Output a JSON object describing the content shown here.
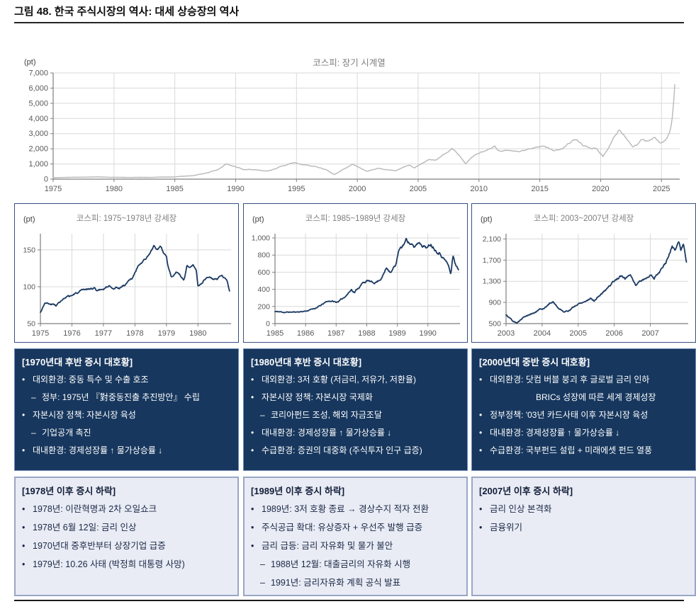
{
  "page": {
    "figure_title": "그림 48. 한국 주식시장의 역사: 대세 상승장의 역사"
  },
  "colors": {
    "longterm_line": "#b8b8b8",
    "bull_line": "#1b3a63",
    "dark_box_bg": "#17375e",
    "light_box_bg": "#e9ecf5",
    "light_box_border": "#9aa6c6",
    "grid": "#d9d9d9",
    "axis": "#7f7f7f"
  },
  "chart_data": [
    {
      "type": "line",
      "title": "코스피: 장기 시계열",
      "unit": "(pt)",
      "color": "#b8b8b8",
      "x_range": [
        1975,
        2026.5
      ],
      "x_end": 2026.1,
      "y_range": [
        0,
        7000
      ],
      "x_ticks": [
        1975,
        1980,
        1985,
        1990,
        1995,
        2000,
        2005,
        2010,
        2015,
        2020,
        2025
      ],
      "x_tick_labels": [
        "1975",
        "1980",
        "1985",
        "1990",
        "1995",
        "2000",
        "2005",
        "2010",
        "2015",
        "2020",
        "2025"
      ],
      "y_ticks": [
        0,
        1000,
        2000,
        3000,
        4000,
        5000,
        6000,
        7000
      ],
      "y_tick_labels": [
        "0",
        "1,000",
        "2,000",
        "3,000",
        "4,000",
        "5,000",
        "6,000",
        "7,000"
      ],
      "anchors": [
        [
          1975,
          95
        ],
        [
          1978.6,
          150
        ],
        [
          1979.5,
          120
        ],
        [
          1981,
          105
        ],
        [
          1983,
          125
        ],
        [
          1985,
          140
        ],
        [
          1986.5,
          230
        ],
        [
          1987.8,
          450
        ],
        [
          1988.6,
          650
        ],
        [
          1989.25,
          1000
        ],
        [
          1990.7,
          610
        ],
        [
          1991.5,
          620
        ],
        [
          1992.6,
          510
        ],
        [
          1994.8,
          1090
        ],
        [
          1996.2,
          880
        ],
        [
          1997.5,
          600
        ],
        [
          1998.1,
          300
        ],
        [
          1999.6,
          980
        ],
        [
          2000.8,
          520
        ],
        [
          2001.7,
          700
        ],
        [
          2003.2,
          540
        ],
        [
          2004.3,
          900
        ],
        [
          2004.7,
          750
        ],
        [
          2005.9,
          1300
        ],
        [
          2006.5,
          1300
        ],
        [
          2007.8,
          2050
        ],
        [
          2008.3,
          1600
        ],
        [
          2008.9,
          1000
        ],
        [
          2009.8,
          1650
        ],
        [
          2011.3,
          2180
        ],
        [
          2011.8,
          1800
        ],
        [
          2013.4,
          1900
        ],
        [
          2014.5,
          2050
        ],
        [
          2015.4,
          2150
        ],
        [
          2016.1,
          1900
        ],
        [
          2017,
          2100
        ],
        [
          2018,
          2550
        ],
        [
          2018.9,
          2050
        ],
        [
          2019.6,
          2100
        ],
        [
          2020.2,
          1480
        ],
        [
          2021.5,
          3290
        ],
        [
          2022,
          2900
        ],
        [
          2022.7,
          2180
        ],
        [
          2023.5,
          2600
        ],
        [
          2023.9,
          2450
        ],
        [
          2024.5,
          2750
        ],
        [
          2024.9,
          2400
        ],
        [
          2025.4,
          2650
        ],
        [
          2025.7,
          3200
        ],
        [
          2025.9,
          4200
        ],
        [
          2026.1,
          6300
        ]
      ]
    },
    {
      "type": "line",
      "title": "코스피: 1975~1978년 강세장",
      "unit": "(pt)",
      "color": "#1b3a63",
      "x_range": [
        1975,
        1981.05
      ],
      "x_end": 1981.0,
      "y_range": [
        50,
        172
      ],
      "x_ticks": [
        1975,
        1976,
        1977,
        1978,
        1979,
        1980
      ],
      "x_tick_labels": [
        "1975",
        "1976",
        "1977",
        "1978",
        "1979",
        "1980"
      ],
      "y_ticks": [
        50,
        100,
        150
      ],
      "y_tick_labels": [
        "50",
        "100",
        "150"
      ],
      "anchors": [
        [
          1975,
          65
        ],
        [
          1975.15,
          80
        ],
        [
          1975.3,
          76
        ],
        [
          1975.5,
          75
        ],
        [
          1975.7,
          82
        ],
        [
          1975.9,
          85
        ],
        [
          1976.1,
          90
        ],
        [
          1976.35,
          93
        ],
        [
          1976.5,
          96
        ],
        [
          1976.7,
          99
        ],
        [
          1976.8,
          95
        ],
        [
          1977,
          97
        ],
        [
          1977.15,
          102
        ],
        [
          1977.3,
          100
        ],
        [
          1977.5,
          99
        ],
        [
          1977.7,
          104
        ],
        [
          1977.9,
          110
        ],
        [
          1978.1,
          127
        ],
        [
          1978.3,
          135
        ],
        [
          1978.45,
          143
        ],
        [
          1978.6,
          154
        ],
        [
          1978.7,
          150
        ],
        [
          1978.8,
          153
        ],
        [
          1978.9,
          145
        ],
        [
          1979,
          140
        ],
        [
          1979.05,
          128
        ],
        [
          1979.15,
          115
        ],
        [
          1979.3,
          120
        ],
        [
          1979.45,
          113
        ],
        [
          1979.55,
          108
        ],
        [
          1979.65,
          128
        ],
        [
          1979.75,
          126
        ],
        [
          1979.85,
          130
        ],
        [
          1979.95,
          122
        ],
        [
          1980,
          103
        ],
        [
          1980.1,
          105
        ],
        [
          1980.2,
          112
        ],
        [
          1980.35,
          117
        ],
        [
          1980.5,
          112
        ],
        [
          1980.6,
          110
        ],
        [
          1980.75,
          115
        ],
        [
          1980.85,
          112
        ],
        [
          1980.93,
          108
        ],
        [
          1981,
          94
        ]
      ]
    },
    {
      "type": "line",
      "title": "코스피: 1985~1989년 강세장",
      "unit": "(pt)",
      "color": "#1b3a63",
      "x_range": [
        1985,
        1991.05
      ],
      "x_end": 1991.0,
      "y_range": [
        0,
        1050
      ],
      "x_ticks": [
        1985,
        1986,
        1987,
        1988,
        1989,
        1990
      ],
      "x_tick_labels": [
        "1985",
        "1986",
        "1987",
        "1988",
        "1989",
        "1990"
      ],
      "y_ticks": [
        0,
        200,
        400,
        600,
        800,
        1000
      ],
      "y_tick_labels": [
        "0",
        "200",
        "400",
        "600",
        "800",
        "1,000"
      ],
      "anchors": [
        [
          1985,
          140
        ],
        [
          1985.3,
          133
        ],
        [
          1985.6,
          134
        ],
        [
          1985.9,
          142
        ],
        [
          1986.1,
          155
        ],
        [
          1986.3,
          180
        ],
        [
          1986.5,
          210
        ],
        [
          1986.7,
          255
        ],
        [
          1986.85,
          265
        ],
        [
          1987,
          248
        ],
        [
          1987.2,
          285
        ],
        [
          1987.4,
          360
        ],
        [
          1987.5,
          400
        ],
        [
          1987.6,
          372
        ],
        [
          1987.75,
          430
        ],
        [
          1987.9,
          485
        ],
        [
          1988.05,
          500
        ],
        [
          1988.2,
          468
        ],
        [
          1988.35,
          495
        ],
        [
          1988.5,
          545
        ],
        [
          1988.65,
          655
        ],
        [
          1988.8,
          612
        ],
        [
          1988.95,
          690
        ],
        [
          1989.05,
          850
        ],
        [
          1989.15,
          880
        ],
        [
          1989.3,
          985
        ],
        [
          1989.45,
          930
        ],
        [
          1989.55,
          880
        ],
        [
          1989.7,
          955
        ],
        [
          1989.85,
          925
        ],
        [
          1990,
          895
        ],
        [
          1990.1,
          935
        ],
        [
          1990.25,
          880
        ],
        [
          1990.4,
          845
        ],
        [
          1990.55,
          760
        ],
        [
          1990.65,
          700
        ],
        [
          1990.75,
          585
        ],
        [
          1990.82,
          790
        ],
        [
          1990.9,
          705
        ],
        [
          1991,
          625
        ]
      ]
    },
    {
      "type": "line",
      "title": "코스피: 2003~2007년 강세장",
      "unit": "(pt)",
      "color": "#1b3a63",
      "x_range": [
        2003,
        2008.05
      ],
      "x_end": 2008.0,
      "y_range": [
        500,
        2200
      ],
      "x_ticks": [
        2003,
        2004,
        2005,
        2006,
        2007
      ],
      "x_tick_labels": [
        "2003",
        "2004",
        "2005",
        "2006",
        "2007"
      ],
      "y_ticks": [
        500,
        900,
        1300,
        1700,
        2100
      ],
      "y_tick_labels": [
        "500",
        "900",
        "1,300",
        "1,700",
        "2,100"
      ],
      "anchors": [
        [
          2003,
          660
        ],
        [
          2003.1,
          605
        ],
        [
          2003.2,
          535
        ],
        [
          2003.3,
          520
        ],
        [
          2003.45,
          600
        ],
        [
          2003.6,
          650
        ],
        [
          2003.75,
          700
        ],
        [
          2003.9,
          750
        ],
        [
          2004,
          770
        ],
        [
          2004.15,
          850
        ],
        [
          2004.3,
          920
        ],
        [
          2004.45,
          800
        ],
        [
          2004.55,
          750
        ],
        [
          2004.65,
          725
        ],
        [
          2004.8,
          780
        ],
        [
          2004.95,
          850
        ],
        [
          2005.1,
          905
        ],
        [
          2005.25,
          950
        ],
        [
          2005.35,
          1000
        ],
        [
          2005.45,
          940
        ],
        [
          2005.6,
          1040
        ],
        [
          2005.75,
          1130
        ],
        [
          2005.9,
          1240
        ],
        [
          2006.05,
          1340
        ],
        [
          2006.2,
          1400
        ],
        [
          2006.3,
          1330
        ],
        [
          2006.45,
          1440
        ],
        [
          2006.6,
          1230
        ],
        [
          2006.75,
          1330
        ],
        [
          2006.9,
          1380
        ],
        [
          2007,
          1420
        ],
        [
          2007.1,
          1370
        ],
        [
          2007.25,
          1480
        ],
        [
          2007.4,
          1600
        ],
        [
          2007.5,
          1740
        ],
        [
          2007.6,
          1950
        ],
        [
          2007.68,
          1870
        ],
        [
          2007.78,
          2050
        ],
        [
          2007.85,
          1900
        ],
        [
          2007.92,
          2010
        ],
        [
          2008,
          1720
        ]
      ]
    }
  ],
  "boom_boxes": [
    {
      "heading": "[1970년대 후반 증시 대호황]",
      "lines": [
        {
          "marker": "•",
          "indent": 0,
          "text": "대외환경: 중동 특수 및 수출 호조"
        },
        {
          "marker": "–",
          "indent": 1,
          "text": "정부: 1975년 『對중동진출 추진방안』 수립"
        },
        {
          "marker": "•",
          "indent": 0,
          "text": "자본시장 정책: 자본시장 육성"
        },
        {
          "marker": "–",
          "indent": 1,
          "text": "기업공개 촉진"
        },
        {
          "marker": "•",
          "indent": 0,
          "text": "대내환경: 경제성장률 ↑ 물가상승률 ↓"
        }
      ]
    },
    {
      "heading": "[1980년대 후반 증시 대호황]",
      "lines": [
        {
          "marker": "•",
          "indent": 0,
          "text": "대외환경: 3저 호황 (저금리, 저유가, 저환율)"
        },
        {
          "marker": "•",
          "indent": 0,
          "text": "자본시장 정책: 자본시장 국제화"
        },
        {
          "marker": "–",
          "indent": 1,
          "text": "코리아펀드 조성, 해외 자금조달"
        },
        {
          "marker": "•",
          "indent": 0,
          "text": "대내환경: 경제성장률 ↑ 물가상승률 ↓"
        },
        {
          "marker": "•",
          "indent": 0,
          "text": "수급환경: 증권의 대중화 (주식투자 인구 급증)"
        }
      ]
    },
    {
      "heading": "[2000년대 중반 증시 대호황]",
      "lines": [
        {
          "marker": "•",
          "indent": 0,
          "text": "대외환경: 닷컴 버블 붕괴 후 글로벌 금리 인하"
        },
        {
          "marker": "",
          "indent": 2,
          "text": "BRICs 성장에 따른 세계 경제성장"
        },
        {
          "marker": "•",
          "indent": 0,
          "text": "정부정책: '03년 카드사태 이후 자본시장 육성"
        },
        {
          "marker": "•",
          "indent": 0,
          "text": "대내환경: 경제성장률 ↑ 물가상승률 ↓"
        },
        {
          "marker": "•",
          "indent": 0,
          "text": "수급환경: 국부펀드 설립 + 미래에셋 펀드 열풍"
        }
      ]
    }
  ],
  "decline_boxes": [
    {
      "heading": "[1978년 이후 증시 하락]",
      "lines": [
        {
          "marker": "•",
          "indent": 0,
          "text": "1978년: 이란혁명과 2차 오일쇼크"
        },
        {
          "marker": "•",
          "indent": 0,
          "text": "1978년 6월 12일: 금리 인상"
        },
        {
          "marker": "•",
          "indent": 0,
          "text": "1970년대 중후반부터 상장기업 급증"
        },
        {
          "marker": "•",
          "indent": 0,
          "text": "1979년: 10.26 사태 (박정희 대통령 사망)"
        }
      ]
    },
    {
      "heading": "[1989년 이후 증시 하락]",
      "lines": [
        {
          "marker": "•",
          "indent": 0,
          "text": "1989년: 3저 호황 종료 → 경상수지 적자 전환"
        },
        {
          "marker": "•",
          "indent": 0,
          "text": "주식공급 확대: 유상증자 + 우선주 발행 급증"
        },
        {
          "marker": "•",
          "indent": 0,
          "text": "금리 급등: 금리 자유화 및 물가 불안"
        },
        {
          "marker": "–",
          "indent": 1,
          "text": "1988년 12월: 대출금리의 자유화 시행"
        },
        {
          "marker": "–",
          "indent": 1,
          "text": "1991년: 금리자유화 계획 공식 발표"
        }
      ]
    },
    {
      "heading": "[2007년 이후 증시 하락]",
      "lines": [
        {
          "marker": "•",
          "indent": 0,
          "text": "금리 인상 본격화"
        },
        {
          "marker": "•",
          "indent": 0,
          "text": "금융위기"
        }
      ]
    }
  ]
}
